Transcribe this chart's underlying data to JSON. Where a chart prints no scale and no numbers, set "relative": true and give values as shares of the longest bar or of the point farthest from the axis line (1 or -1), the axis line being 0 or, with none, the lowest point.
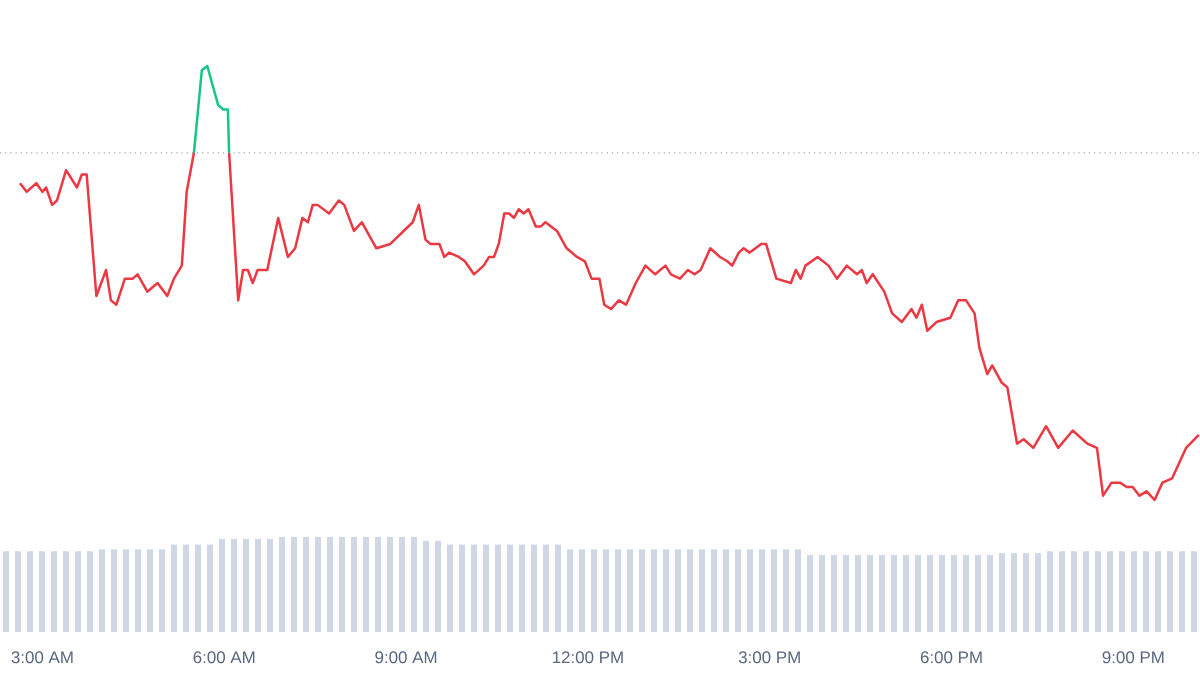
{
  "chart_data": [
    {
      "type": "line",
      "relative": true,
      "xlim": [
        2.3,
        22.1
      ],
      "marker": "none",
      "line_style": "solid",
      "xticks": [
        {
          "value": 3,
          "label": "3:00 AM"
        },
        {
          "value": 6,
          "label": "6:00 AM"
        },
        {
          "value": 9,
          "label": "9:00 AM"
        },
        {
          "value": 12,
          "label": "12:00 PM"
        },
        {
          "value": 15,
          "label": "3:00 PM"
        },
        {
          "value": 18,
          "label": "6:00 PM"
        },
        {
          "value": 21,
          "label": "9:00 PM"
        }
      ],
      "ref_lines": [
        {
          "axis": "y",
          "value": 0.8,
          "color": "#9ca3af",
          "line_style": "dotted"
        }
      ],
      "series": [
        {
          "color": "#ea3943",
          "x": [
            2.63,
            2.74,
            2.9,
            3.0,
            3.06,
            3.16,
            3.24,
            3.39,
            3.57,
            3.65,
            3.73,
            3.89,
            4.05,
            4.13,
            4.22,
            4.36,
            4.49,
            4.57,
            4.73,
            4.9,
            5.06,
            5.17,
            5.3,
            5.38,
            5.5,
            5.72,
            6.08,
            6.23,
            6.31,
            6.39,
            6.47,
            6.55,
            6.71,
            6.89,
            7.05,
            7.17,
            7.29,
            7.38,
            7.46,
            7.54,
            7.73,
            7.89,
            7.98,
            8.14,
            8.27,
            8.51,
            8.74,
            9.11,
            9.21,
            9.32,
            9.4,
            9.55,
            9.63,
            9.71,
            9.87,
            9.97,
            10.12,
            10.28,
            10.37,
            10.45,
            10.53,
            10.62,
            10.7,
            10.78,
            10.86,
            10.94,
            11.02,
            11.14,
            11.22,
            11.3,
            11.49,
            11.65,
            11.82,
            11.95,
            12.06,
            12.19,
            12.27,
            12.38,
            12.51,
            12.63,
            12.79,
            12.95,
            13.11,
            13.28,
            13.37,
            13.52,
            13.65,
            13.76,
            13.86,
            14.02,
            14.18,
            14.3,
            14.38,
            14.49,
            14.57,
            14.67,
            14.86,
            14.94,
            15.11,
            15.35,
            15.43,
            15.51,
            15.59,
            15.79,
            15.97,
            16.11,
            16.27,
            16.44,
            16.52,
            16.6,
            16.7,
            16.89,
            17.02,
            17.18,
            17.34,
            17.42,
            17.51,
            17.6,
            17.75,
            17.98,
            18.11,
            18.24,
            18.38,
            18.46,
            18.59,
            18.67,
            18.83,
            18.92,
            19.08,
            19.19,
            19.35,
            19.56,
            19.76,
            20.0,
            20.24,
            20.4,
            20.5,
            20.64,
            20.78,
            20.89,
            20.99,
            21.1,
            21.22,
            21.35,
            21.48,
            21.64,
            21.87,
            22.08
          ],
          "values": [
            0.73,
            0.71,
            0.73,
            0.71,
            0.72,
            0.68,
            0.69,
            0.76,
            0.72,
            0.75,
            0.75,
            0.47,
            0.53,
            0.46,
            0.45,
            0.51,
            0.51,
            0.52,
            0.48,
            0.5,
            0.47,
            0.51,
            0.54,
            0.71,
            0.8,
            null,
            0.8,
            0.46,
            0.53,
            0.53,
            0.5,
            0.53,
            0.53,
            0.65,
            0.56,
            0.58,
            0.65,
            0.64,
            0.68,
            0.68,
            0.66,
            0.69,
            0.68,
            0.62,
            0.64,
            0.58,
            0.59,
            0.64,
            0.68,
            0.6,
            0.59,
            0.59,
            0.56,
            0.57,
            0.56,
            0.55,
            0.52,
            0.54,
            0.56,
            0.56,
            0.59,
            0.66,
            0.66,
            0.65,
            0.67,
            0.66,
            0.67,
            0.63,
            0.63,
            0.64,
            0.62,
            0.58,
            0.56,
            0.55,
            0.51,
            0.51,
            0.45,
            0.44,
            0.46,
            0.45,
            0.5,
            0.54,
            0.52,
            0.54,
            0.52,
            0.51,
            0.53,
            0.52,
            0.53,
            0.58,
            0.56,
            0.55,
            0.54,
            0.57,
            0.58,
            0.57,
            0.59,
            0.59,
            0.51,
            0.5,
            0.53,
            0.51,
            0.54,
            0.56,
            0.54,
            0.51,
            0.54,
            0.52,
            0.53,
            0.5,
            0.52,
            0.48,
            0.43,
            0.41,
            0.44,
            0.42,
            0.45,
            0.39,
            0.41,
            0.42,
            0.46,
            0.46,
            0.43,
            0.35,
            0.29,
            0.31,
            0.27,
            0.26,
            0.13,
            0.14,
            0.12,
            0.17,
            0.12,
            0.16,
            0.13,
            0.12,
            0.01,
            0.04,
            0.04,
            0.03,
            0.03,
            0.01,
            0.02,
            0.0,
            0.04,
            0.05,
            0.12,
            0.15
          ]
        },
        {
          "color": "#16c784",
          "x": [
            5.5,
            5.63,
            5.72,
            5.9,
            5.98,
            6.06,
            6.08
          ],
          "values": [
            0.8,
            0.99,
            1.0,
            0.91,
            0.9,
            0.9,
            0.8
          ]
        }
      ]
    },
    {
      "type": "bar",
      "relative": true,
      "color": "#cfd6e4",
      "categories": [
        null,
        null,
        null,
        null,
        null,
        null,
        null,
        null,
        null,
        null,
        null,
        null,
        null,
        null,
        null,
        null,
        null,
        null,
        null,
        null,
        null,
        null,
        null,
        null,
        null,
        null,
        null,
        null,
        null,
        null,
        null,
        null,
        null,
        null,
        null,
        null,
        null,
        null,
        null,
        null,
        null,
        null,
        null,
        null,
        null,
        null,
        null,
        null,
        null,
        null,
        null,
        null,
        null,
        null,
        null,
        null,
        null,
        null,
        null,
        null,
        null,
        null,
        null,
        null,
        null,
        null,
        null,
        null,
        null,
        null,
        null,
        null,
        null,
        null,
        null,
        null,
        null,
        null,
        null,
        null,
        null,
        null,
        null,
        null,
        null,
        null,
        null,
        null,
        null,
        null,
        null,
        null,
        null,
        null,
        null,
        null,
        null,
        null,
        null,
        null
      ],
      "values": [
        0.85,
        0.85,
        0.85,
        0.85,
        0.85,
        0.85,
        0.85,
        0.85,
        0.87,
        0.87,
        0.87,
        0.87,
        0.87,
        0.87,
        0.92,
        0.92,
        0.92,
        0.92,
        0.98,
        0.98,
        0.98,
        0.98,
        0.98,
        1,
        1,
        1,
        1,
        1,
        1,
        1,
        1,
        1,
        1,
        1,
        1,
        0.96,
        0.96,
        0.92,
        0.92,
        0.92,
        0.92,
        0.92,
        0.92,
        0.92,
        0.92,
        0.92,
        0.92,
        0.87,
        0.87,
        0.87,
        0.87,
        0.87,
        0.87,
        0.87,
        0.87,
        0.87,
        0.87,
        0.87,
        0.87,
        0.87,
        0.87,
        0.87,
        0.87,
        0.87,
        0.87,
        0.87,
        0.87,
        0.81,
        0.81,
        0.81,
        0.81,
        0.81,
        0.81,
        0.81,
        0.81,
        0.81,
        0.81,
        0.81,
        0.81,
        0.81,
        0.81,
        0.81,
        0.81,
        0.83,
        0.83,
        0.83,
        0.83,
        0.85,
        0.85,
        0.85,
        0.85,
        0.85,
        0.85,
        0.85,
        0.85,
        0.85,
        0.85,
        0.85,
        0.85,
        0.85
      ]
    }
  ]
}
